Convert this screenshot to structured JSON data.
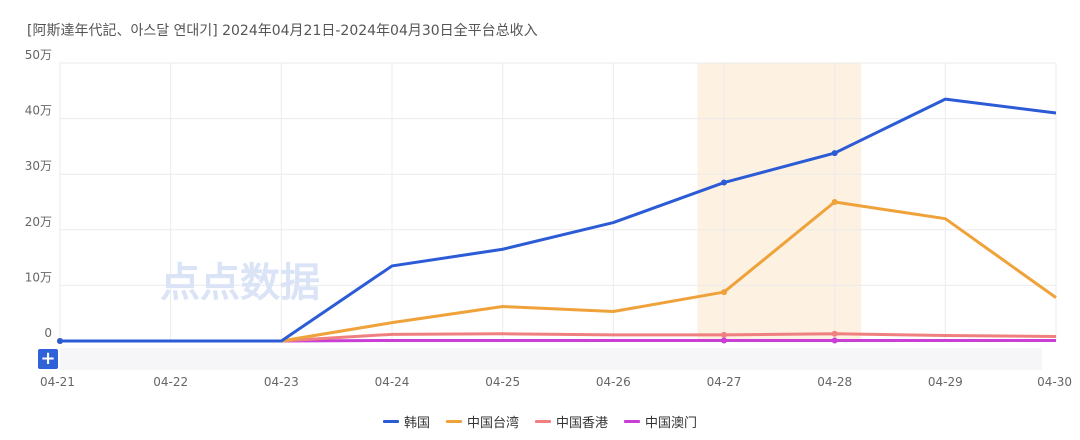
{
  "title": "[阿斯達年代記、아스달 연대기]  2024年04月21日-2024年04月30日全平台总收入",
  "watermark": "点点数据",
  "zoom_button": "+",
  "chart_data": {
    "type": "line",
    "title": "[阿斯達年代記、아스달 연대기]  2024年04月21日-2024年04月30日全平台总收入",
    "categories": [
      "04-21",
      "04-22",
      "04-23",
      "04-24",
      "04-25",
      "04-26",
      "04-27",
      "04-28",
      "04-29",
      "04-30"
    ],
    "ylim": [
      0,
      500000
    ],
    "yticks": [
      0,
      100000,
      200000,
      300000,
      400000,
      500000
    ],
    "ytick_labels": [
      "0",
      "10万",
      "20万",
      "30万",
      "40万",
      "50万"
    ],
    "grid": true,
    "highlight_range": [
      "04-27",
      "04-28"
    ],
    "highlight_color": "#fdf1e1",
    "legend_position": "bottom",
    "series": [
      {
        "name": "韩国",
        "color": "#2c5bd6",
        "values": [
          0,
          0,
          0,
          135000,
          165000,
          213000,
          285000,
          338000,
          435000,
          410000
        ]
      },
      {
        "name": "中国台湾",
        "color": "#f0a23a",
        "values": [
          0,
          0,
          0,
          33000,
          62000,
          53000,
          88000,
          250000,
          220000,
          78000
        ]
      },
      {
        "name": "中国香港",
        "color": "#f08080",
        "values": [
          0,
          0,
          0,
          12000,
          13000,
          11000,
          11000,
          13000,
          10000,
          8000
        ]
      },
      {
        "name": "中国澳门",
        "color": "#c93fd6",
        "values": [
          0,
          0,
          0,
          1000,
          1000,
          1000,
          1000,
          1000,
          1000,
          1000
        ]
      }
    ]
  }
}
